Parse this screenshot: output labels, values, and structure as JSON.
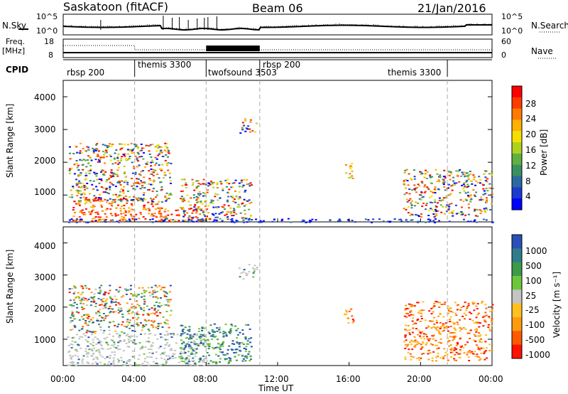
{
  "header": {
    "station": "Saskatoon (fitACF)",
    "beam": "Beam 06",
    "date": "21/Jan/2016"
  },
  "noise_panel": {
    "left_label": "N.Sky",
    "right_label": "N.Search",
    "left_ticks": [
      "10^5",
      "10^0"
    ],
    "right_ticks": [
      "10^5",
      "10^0"
    ]
  },
  "freq_panel": {
    "left_label_1": "Freq.",
    "left_label_2": "[MHz]",
    "right_label": "Nave",
    "left_ticks": [
      "18",
      "8"
    ],
    "right_ticks": [
      "60",
      "0"
    ]
  },
  "cpid": {
    "label": "CPID",
    "segments": [
      {
        "name": "rbsp 200",
        "start": 0.0,
        "end": 4.0
      },
      {
        "name": "themis 3300",
        "start": 4.0,
        "end": 8.0
      },
      {
        "name": "twofsound 3503",
        "start": 8.0,
        "end": 11.0
      },
      {
        "name": "rbsp 200",
        "start": 11.0,
        "end": 21.5
      },
      {
        "name": "themis 3300",
        "start": 21.5,
        "end": 24.0
      }
    ]
  },
  "axes": {
    "xlabel": "Time UT",
    "xticks": [
      "00:00",
      "04:00",
      "08:00",
      "12:00",
      "16:00",
      "20:00",
      "00:00"
    ],
    "ylabel": "Slant Range [km]",
    "yticks": [
      "1000",
      "2000",
      "3000",
      "4000"
    ]
  },
  "power_colorbar": {
    "label": "Power [dB]",
    "ticks": [
      "28",
      "24",
      "20",
      "16",
      "12",
      "8",
      "4"
    ],
    "colors": [
      "#ff0000",
      "#ff3b00",
      "#ff7a00",
      "#ffb000",
      "#f4e000",
      "#b0d020",
      "#5fb040",
      "#3a9060",
      "#2a6aa0",
      "#1a3ad0",
      "#0000ff"
    ]
  },
  "velocity_colorbar": {
    "label": "Velocity [m s⁻¹]",
    "ticks": [
      "1000",
      "500",
      "100",
      "25",
      "-25",
      "-100",
      "-500",
      "-1000"
    ],
    "colors": [
      "#2a4fb8",
      "#2f7d8a",
      "#3c9a4a",
      "#6cc83a",
      "#c4c4c4",
      "#ffc020",
      "#ff9a10",
      "#ff5a00",
      "#ff1000"
    ]
  },
  "chart_data": {
    "type": "heatmap",
    "x_range_hours": [
      0,
      24
    ],
    "y_range_km": [
      180,
      4500
    ],
    "markers_hours": [
      4.0,
      8.0,
      11.0,
      21.5
    ],
    "power_regions": [
      {
        "t0": 0.5,
        "t1": 5.5,
        "r0": 200,
        "r1": 900,
        "level": "high"
      },
      {
        "t0": 5.3,
        "t1": 8.0,
        "r0": 200,
        "r1": 600,
        "level": "high"
      },
      {
        "t0": 0.3,
        "t1": 6.0,
        "r0": 800,
        "r1": 2600,
        "level": "mixed"
      },
      {
        "t0": 6.5,
        "t1": 10.5,
        "r0": 250,
        "r1": 1500,
        "level": "mixed"
      },
      {
        "t0": 9.8,
        "t1": 10.8,
        "r0": 2900,
        "r1": 3350,
        "level": "mixed"
      },
      {
        "t0": 15.7,
        "t1": 16.2,
        "r0": 1500,
        "r1": 2000,
        "level": "mid"
      },
      {
        "t0": 19.0,
        "t1": 24.0,
        "r0": 350,
        "r1": 1800,
        "level": "mixed"
      },
      {
        "t0": 0.0,
        "t1": 24.0,
        "r0": 180,
        "r1": 300,
        "level": "low"
      }
    ],
    "velocity_regions": [
      {
        "t0": 0.2,
        "t1": 8.0,
        "r0": 200,
        "r1": 1200,
        "kind": "ground"
      },
      {
        "t0": 0.3,
        "t1": 6.0,
        "r0": 1200,
        "r1": 2700,
        "kind": "mixed"
      },
      {
        "t0": 6.5,
        "t1": 10.5,
        "r0": 250,
        "r1": 1500,
        "kind": "blue"
      },
      {
        "t0": 9.8,
        "t1": 10.8,
        "r0": 2900,
        "r1": 3350,
        "kind": "ground"
      },
      {
        "t0": 15.7,
        "t1": 16.2,
        "r0": 1500,
        "r1": 2000,
        "kind": "negative"
      },
      {
        "t0": 19.0,
        "t1": 24.0,
        "r0": 350,
        "r1": 2200,
        "kind": "negative"
      }
    ]
  }
}
